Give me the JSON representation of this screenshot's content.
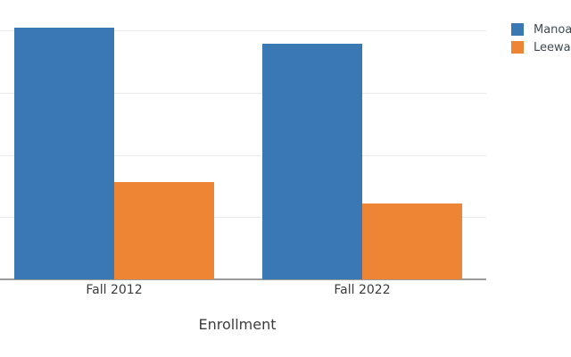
{
  "chart_data": {
    "type": "bar",
    "title": "",
    "xlabel": "Enrollment",
    "ylabel": "",
    "categories": [
      "Fall 2012",
      "Fall 2022"
    ],
    "series": [
      {
        "name": "Manoa",
        "color": "#3a78b4",
        "values": [
          20200,
          18900
        ]
      },
      {
        "name": "Leeward",
        "color": "#ee8534",
        "values": [
          7800,
          6100
        ]
      }
    ],
    "ylim": [
      0,
      22400
    ],
    "grid": true,
    "gridline_interval": 5000,
    "y_tick_labels_visible": false,
    "legend_position": "top-right"
  },
  "colors": {
    "gridline": "#e9e9e9",
    "axis_line": "#9a9a9a",
    "tick_text": "#3a3a3a"
  }
}
